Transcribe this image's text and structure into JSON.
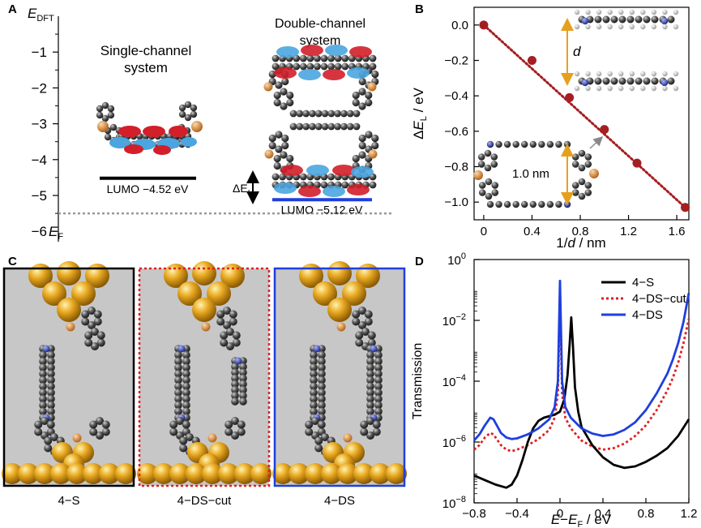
{
  "panel_labels": {
    "a": "A",
    "b": "B",
    "c": "C",
    "d": "D"
  },
  "panel_a": {
    "axis_label": "E",
    "axis_label_sub": "DFT",
    "ticks": [
      "−1",
      "−2",
      "−3",
      "−4",
      "−5",
      "−6"
    ],
    "ticks_values": [
      -1,
      -2,
      -3,
      -4,
      -5,
      -6
    ],
    "fermi_label": "E",
    "fermi_label_sub": "F",
    "fermi_level": -5.5,
    "single_title_1": "Single-channel",
    "single_title_2": "system",
    "double_title_1": "Double-channel",
    "double_title_2": "system",
    "single_lumo_label": "LUMO −4.52 eV",
    "single_lumo_value": -4.52,
    "double_lumo_label": "LUMO −5.12 eV",
    "double_lumo_value": -5.12,
    "delta_label": "ΔE",
    "delta_label_sub": "L",
    "colors": {
      "single_line": "#000000",
      "double_line": "#1f3fdd",
      "fermi": "#999999"
    }
  },
  "panel_c": {
    "labels": [
      "4−S",
      "4−DS−cut",
      "4−DS"
    ],
    "frame_colors": [
      "#000000",
      "#e02020",
      "#1f3fdd"
    ]
  },
  "chart_data": [
    {
      "type": "scatter",
      "title": "",
      "xlabel": "1/d / nm",
      "ylabel": "ΔE_L / eV",
      "xlim": [
        -0.08,
        1.7
      ],
      "ylim": [
        -1.1,
        0.1
      ],
      "xticks": [
        "0",
        "0.4",
        "0.8",
        "1.2",
        "1.6"
      ],
      "yticks": [
        "0.0",
        "−0.2",
        "−0.4",
        "−0.6",
        "−0.8",
        "−1.0"
      ],
      "x": [
        0,
        0.4,
        0.71,
        1.0,
        1.27,
        1.67
      ],
      "y": [
        0,
        -0.2,
        -0.41,
        -0.59,
        -0.78,
        -1.03
      ],
      "fit_line": {
        "x": [
          0,
          1.67
        ],
        "y": [
          0,
          -1.03
        ],
        "style": "dotted"
      },
      "annotations": [
        "d",
        "1.0 nm"
      ],
      "colors": {
        "points": "#a51e22",
        "fit": "#a51e22"
      }
    },
    {
      "type": "line",
      "title": "",
      "xlabel": "E−E_F / eV",
      "ylabel": "Transmission",
      "xlim": [
        -0.8,
        1.2
      ],
      "ylim_log10": [
        -8,
        0
      ],
      "xticks": [
        "−0.8",
        "−0.4",
        "0",
        "0.4",
        "0.8",
        "1.2"
      ],
      "yticks_exp": [
        "−8",
        "−6",
        "−4",
        "−2",
        "0"
      ],
      "legend_position": "top-right",
      "series": [
        {
          "name": "4−S",
          "color": "#000000",
          "dash": "solid",
          "x": [
            -0.8,
            -0.7,
            -0.6,
            -0.5,
            -0.45,
            -0.4,
            -0.35,
            -0.3,
            -0.25,
            -0.2,
            -0.15,
            -0.1,
            -0.05,
            0,
            0.04,
            0.07,
            0.09,
            0.105,
            0.12,
            0.14,
            0.17,
            0.2,
            0.3,
            0.4,
            0.5,
            0.6,
            0.7,
            0.8,
            0.9,
            1.0,
            1.1,
            1.2
          ],
          "log10": [
            -7.1,
            -7.25,
            -7.4,
            -7.5,
            -7.4,
            -7.1,
            -6.6,
            -6.0,
            -5.55,
            -5.3,
            -5.2,
            -5.15,
            -5.1,
            -5.0,
            -4.6,
            -3.8,
            -2.8,
            -1.9,
            -2.8,
            -4.2,
            -5.0,
            -5.5,
            -6.1,
            -6.5,
            -6.75,
            -6.85,
            -6.8,
            -6.65,
            -6.45,
            -6.2,
            -5.8,
            -5.25
          ]
        },
        {
          "name": "4−DS−cut",
          "color": "#e02020",
          "dash": "dotted",
          "x": [
            -0.8,
            -0.75,
            -0.7,
            -0.65,
            -0.62,
            -0.58,
            -0.55,
            -0.5,
            -0.45,
            -0.4,
            -0.3,
            -0.2,
            -0.1,
            -0.05,
            -0.02,
            0,
            0.02,
            0.05,
            0.1,
            0.2,
            0.3,
            0.4,
            0.5,
            0.6,
            0.7,
            0.8,
            0.9,
            1.0,
            1.05,
            1.1,
            1.15,
            1.2
          ],
          "log10": [
            -6.25,
            -6.1,
            -5.85,
            -5.7,
            -5.75,
            -5.95,
            -6.1,
            -6.25,
            -6.3,
            -6.25,
            -6.1,
            -5.9,
            -5.6,
            -5.2,
            -4.4,
            -1.3,
            -4.4,
            -5.2,
            -5.55,
            -5.95,
            -6.15,
            -6.25,
            -6.2,
            -6.05,
            -5.8,
            -5.45,
            -4.95,
            -4.3,
            -3.9,
            -3.4,
            -2.75,
            -1.95
          ]
        },
        {
          "name": "4−DS",
          "color": "#1f3fdd",
          "dash": "solid",
          "x": [
            -0.8,
            -0.75,
            -0.7,
            -0.65,
            -0.62,
            -0.58,
            -0.55,
            -0.5,
            -0.45,
            -0.4,
            -0.3,
            -0.2,
            -0.1,
            -0.05,
            -0.02,
            0,
            0.02,
            0.05,
            0.1,
            0.2,
            0.3,
            0.4,
            0.5,
            0.6,
            0.7,
            0.8,
            0.9,
            1.0,
            1.05,
            1.1,
            1.15,
            1.2
          ],
          "log10": [
            -5.95,
            -5.75,
            -5.45,
            -5.2,
            -5.25,
            -5.5,
            -5.7,
            -5.85,
            -5.9,
            -5.88,
            -5.75,
            -5.55,
            -5.25,
            -4.85,
            -4.0,
            -0.7,
            -4.0,
            -4.85,
            -5.2,
            -5.55,
            -5.72,
            -5.8,
            -5.75,
            -5.6,
            -5.35,
            -4.95,
            -4.4,
            -3.75,
            -3.3,
            -2.75,
            -2.05,
            -1.1
          ]
        }
      ]
    }
  ]
}
